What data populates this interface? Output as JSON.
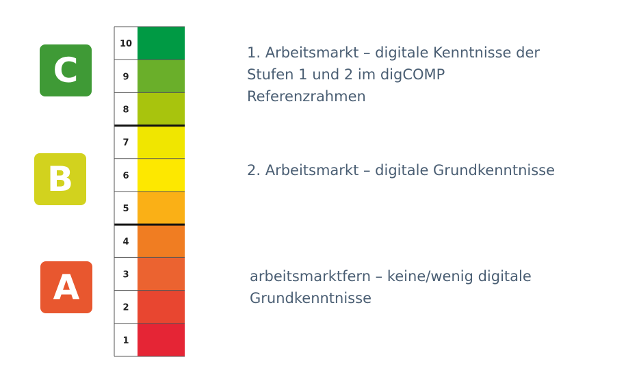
{
  "levels": [
    {
      "number": "10",
      "color": "#009a44"
    },
    {
      "number": "9",
      "color": "#6aaf2a"
    },
    {
      "number": "8",
      "color": "#a8c40d"
    },
    {
      "number": "7",
      "color": "#f0e600"
    },
    {
      "number": "6",
      "color": "#fde800"
    },
    {
      "number": "5",
      "color": "#fab016"
    },
    {
      "number": "4",
      "color": "#f07d22"
    },
    {
      "number": "3",
      "color": "#eb6330"
    },
    {
      "number": "2",
      "color": "#e84630"
    },
    {
      "number": "1",
      "color": "#e52535"
    }
  ],
  "group_breaks_after": [
    "8",
    "5"
  ],
  "categories": [
    {
      "letter": "C",
      "color": "#3f9a36",
      "description": [
        "1. Arbeitsmarkt – digitale Kenntnisse der",
        "Stufen 1 und 2 im digCOMP",
        "Referenzrahmen"
      ]
    },
    {
      "letter": "B",
      "color": "#d2d21e",
      "description": [
        "2. Arbeitsmarkt – digitale Grundkenntnisse"
      ]
    },
    {
      "letter": "A",
      "color": "#e8572f",
      "description": [
        "arbeitsmarktfern – keine/wenig digitale",
        "Grundkenntnisse"
      ]
    }
  ]
}
